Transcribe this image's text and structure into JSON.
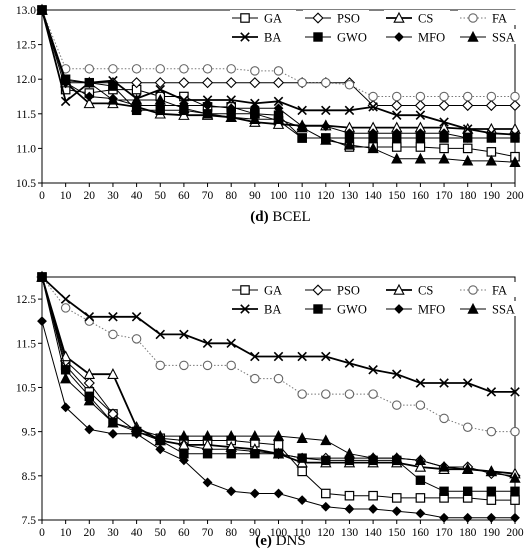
{
  "chart_data": [
    {
      "type": "line",
      "caption_letter": "(d)",
      "caption_name": "BCEL",
      "x": [
        0,
        10,
        20,
        30,
        40,
        50,
        60,
        70,
        80,
        90,
        100,
        110,
        120,
        130,
        140,
        150,
        160,
        170,
        180,
        190,
        200
      ],
      "xlim": [
        0,
        200
      ],
      "ylim": [
        10.5,
        13.0
      ],
      "yticks": [
        10.5,
        11.0,
        11.5,
        12.0,
        12.5,
        13.0
      ],
      "ytick_labels": [
        "10.5",
        "11.0",
        "11.5",
        "12.0",
        "12.5",
        "13.0"
      ],
      "xticks": [
        0,
        10,
        20,
        30,
        40,
        50,
        60,
        70,
        80,
        90,
        100,
        110,
        120,
        130,
        140,
        150,
        160,
        170,
        180,
        190,
        200
      ],
      "legend": "top-right",
      "series": [
        {
          "name": "GA",
          "marker": "square-open",
          "line": "thin",
          "values": [
            13,
            11.85,
            11.8,
            11.85,
            11.85,
            11.75,
            11.75,
            11.6,
            11.6,
            11.5,
            11.4,
            11.15,
            11.15,
            11.02,
            11.02,
            11.02,
            11.02,
            11.0,
            11.0,
            10.95,
            10.88
          ]
        },
        {
          "name": "PSO",
          "marker": "diamond-open",
          "line": "thin",
          "values": [
            13,
            11.95,
            11.95,
            11.95,
            11.95,
            11.95,
            11.95,
            11.95,
            11.95,
            11.95,
            11.95,
            11.95,
            11.95,
            11.95,
            11.62,
            11.62,
            11.62,
            11.62,
            11.62,
            11.62,
            11.62
          ]
        },
        {
          "name": "CS",
          "marker": "triangle-open",
          "line": "thick",
          "values": [
            13,
            11.95,
            11.65,
            11.65,
            11.6,
            11.5,
            11.48,
            11.48,
            11.45,
            11.38,
            11.35,
            11.33,
            11.33,
            11.3,
            11.3,
            11.3,
            11.3,
            11.3,
            11.28,
            11.28,
            11.28
          ]
        },
        {
          "name": "FA",
          "marker": "circle-open",
          "line": "dotted",
          "values": [
            13,
            12.15,
            12.15,
            12.15,
            12.15,
            12.15,
            12.15,
            12.15,
            12.15,
            12.12,
            12.12,
            11.95,
            11.95,
            11.92,
            11.75,
            11.75,
            11.75,
            11.75,
            11.75,
            11.75,
            11.75
          ]
        },
        {
          "name": "BA",
          "marker": "x",
          "line": "thick",
          "values": [
            13,
            11.68,
            11.95,
            11.98,
            11.72,
            11.85,
            11.7,
            11.7,
            11.7,
            11.65,
            11.68,
            11.55,
            11.55,
            11.55,
            11.6,
            11.48,
            11.48,
            11.38,
            11.28,
            11.22,
            11.2
          ]
        },
        {
          "name": "GWO",
          "marker": "square-filled",
          "line": "thin",
          "values": [
            13,
            12.0,
            11.95,
            11.9,
            11.55,
            11.55,
            11.55,
            11.5,
            11.5,
            11.5,
            11.48,
            11.15,
            11.15,
            11.15,
            11.15,
            11.15,
            11.15,
            11.15,
            11.15,
            11.15,
            11.15
          ]
        },
        {
          "name": "MFO",
          "marker": "diamond-filled",
          "line": "thin",
          "values": [
            13,
            11.95,
            11.75,
            11.72,
            11.62,
            11.62,
            11.62,
            11.62,
            11.58,
            11.58,
            11.58,
            11.32,
            11.32,
            11.22,
            11.22,
            11.22,
            11.22,
            11.22,
            11.15,
            11.15,
            11.15
          ]
        },
        {
          "name": "SSA",
          "marker": "triangle-filled",
          "line": "thin",
          "values": [
            13,
            11.98,
            11.95,
            11.7,
            11.7,
            11.7,
            11.58,
            11.5,
            11.45,
            11.42,
            11.42,
            11.3,
            11.12,
            11.05,
            11.0,
            10.85,
            10.85,
            10.85,
            10.82,
            10.82,
            10.8
          ]
        }
      ]
    },
    {
      "type": "line",
      "caption_letter": "(e)",
      "caption_name": "DNS",
      "x": [
        0,
        10,
        20,
        30,
        40,
        50,
        60,
        70,
        80,
        90,
        100,
        110,
        120,
        130,
        140,
        150,
        160,
        170,
        180,
        190,
        200
      ],
      "xlim": [
        0,
        200
      ],
      "ylim": [
        7.5,
        13.0
      ],
      "yticks": [
        7.5,
        8.5,
        9.5,
        10.5,
        11.5,
        12.5
      ],
      "ytick_labels": [
        "7.5",
        "8.5",
        "9.5",
        "10.5",
        "11.5",
        "12.5"
      ],
      "xticks": [
        0,
        10,
        20,
        30,
        40,
        50,
        60,
        70,
        80,
        90,
        100,
        110,
        120,
        130,
        140,
        150,
        160,
        170,
        180,
        190,
        200
      ],
      "legend": "top-right",
      "series": [
        {
          "name": "GA",
          "marker": "square-open",
          "line": "thin",
          "values": [
            13,
            11.0,
            10.4,
            9.9,
            9.5,
            9.35,
            9.3,
            9.3,
            9.3,
            9.25,
            9.2,
            8.6,
            8.1,
            8.05,
            8.05,
            8.0,
            8.0,
            8.0,
            8.0,
            7.95,
            7.95
          ]
        },
        {
          "name": "PSO",
          "marker": "diamond-open",
          "line": "thin",
          "values": [
            13,
            11.1,
            10.6,
            9.9,
            9.5,
            9.3,
            9.2,
            9.1,
            9.1,
            9.05,
            9.0,
            8.9,
            8.9,
            8.9,
            8.9,
            8.9,
            8.85,
            8.7,
            8.7,
            8.55,
            8.5
          ]
        },
        {
          "name": "CS",
          "marker": "triangle-open",
          "line": "thick",
          "values": [
            13,
            11.2,
            10.8,
            10.8,
            9.6,
            9.3,
            9.2,
            9.2,
            9.15,
            9.1,
            9.0,
            8.8,
            8.8,
            8.8,
            8.8,
            8.8,
            8.7,
            8.65,
            8.65,
            8.6,
            8.55
          ]
        },
        {
          "name": "FA",
          "marker": "circle-open",
          "line": "dotted",
          "values": [
            13,
            12.3,
            12.0,
            11.7,
            11.6,
            11.0,
            11.0,
            11.0,
            11.0,
            10.7,
            10.7,
            10.35,
            10.35,
            10.35,
            10.35,
            10.1,
            10.1,
            9.8,
            9.6,
            9.5,
            9.5
          ]
        },
        {
          "name": "BA",
          "marker": "x",
          "line": "thick",
          "values": [
            13,
            12.5,
            12.1,
            12.1,
            12.1,
            11.7,
            11.7,
            11.5,
            11.5,
            11.2,
            11.2,
            11.2,
            11.2,
            11.05,
            10.9,
            10.8,
            10.6,
            10.6,
            10.6,
            10.4,
            10.4
          ]
        },
        {
          "name": "GWO",
          "marker": "square-filled",
          "line": "thin",
          "values": [
            13,
            10.9,
            10.3,
            9.7,
            9.5,
            9.3,
            9.0,
            9.0,
            9.0,
            9.0,
            9.0,
            8.9,
            8.85,
            8.85,
            8.85,
            8.85,
            8.4,
            8.15,
            8.15,
            8.15,
            8.15
          ]
        },
        {
          "name": "MFO",
          "marker": "diamond-filled",
          "line": "thin",
          "values": [
            12.0,
            10.05,
            9.55,
            9.45,
            9.45,
            9.1,
            8.85,
            8.35,
            8.15,
            8.1,
            8.1,
            7.95,
            7.8,
            7.75,
            7.75,
            7.7,
            7.65,
            7.55,
            7.55,
            7.55,
            7.55
          ]
        },
        {
          "name": "SSA",
          "marker": "triangle-filled",
          "line": "thin",
          "values": [
            13,
            10.7,
            10.2,
            9.7,
            9.55,
            9.4,
            9.4,
            9.4,
            9.4,
            9.4,
            9.4,
            9.35,
            9.3,
            9.0,
            8.9,
            8.9,
            8.85,
            8.7,
            8.65,
            8.6,
            8.45
          ]
        }
      ]
    }
  ]
}
